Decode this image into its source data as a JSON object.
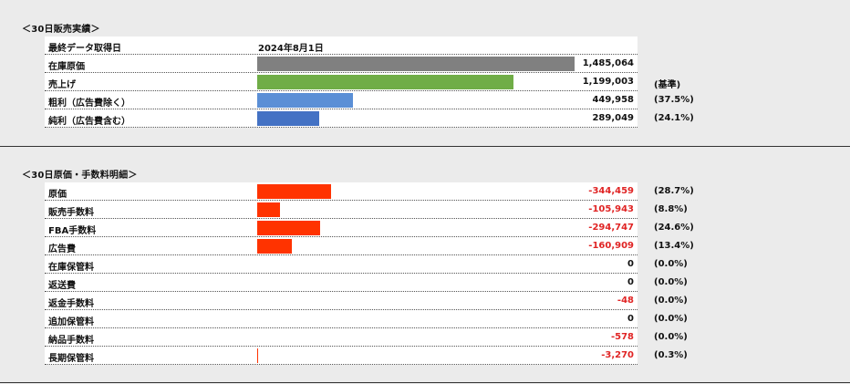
{
  "sales": {
    "title": "＜30日販売実績＞",
    "last_fetch_label": "最終データ取得日",
    "last_fetch_date": "2024年8月1日",
    "rows": [
      {
        "label": "在庫原価",
        "value": "1,485,064",
        "note": "",
        "bar_fraction": 1.0,
        "bar_color": "#808080"
      },
      {
        "label": "売上げ",
        "value": "1,199,003",
        "note": "(基準)",
        "bar_fraction": 0.807,
        "bar_color": "#70ad47"
      },
      {
        "label": "粗利（広告費除く）",
        "value": "449,958",
        "note": "(37.5%)",
        "bar_fraction": 0.303,
        "bar_color": "#5b8fd6"
      },
      {
        "label": "純利（広告費含む）",
        "value": "289,049",
        "note": "(24.1%)",
        "bar_fraction": 0.195,
        "bar_color": "#4472c4"
      }
    ]
  },
  "costs": {
    "title": "＜30日原価・手数料明細＞",
    "rows": [
      {
        "label": "原価",
        "value": "-344,459",
        "note": "(28.7%)",
        "bar_fraction": 0.232,
        "bar_color": "#ff3300",
        "negative": true
      },
      {
        "label": "販売手数料",
        "value": "-105,943",
        "note": "(8.8%)",
        "bar_fraction": 0.071,
        "bar_color": "#ff3300",
        "negative": true
      },
      {
        "label": "FBA手数料",
        "value": "-294,747",
        "note": "(24.6%)",
        "bar_fraction": 0.198,
        "bar_color": "#ff3300",
        "negative": true
      },
      {
        "label": "広告費",
        "value": "-160,909",
        "note": "(13.4%)",
        "bar_fraction": 0.108,
        "bar_color": "#ff3300",
        "negative": true
      },
      {
        "label": "在庫保管料",
        "value": "0",
        "note": "(0.0%)",
        "bar_fraction": 0,
        "bar_color": "#ff3300",
        "negative": false
      },
      {
        "label": "返送費",
        "value": "0",
        "note": "(0.0%)",
        "bar_fraction": 0,
        "bar_color": "#ff3300",
        "negative": false
      },
      {
        "label": "返金手数料",
        "value": "-48",
        "note": "(0.0%)",
        "bar_fraction": 0,
        "bar_color": "#ff3300",
        "negative": true
      },
      {
        "label": "追加保管料",
        "value": "0",
        "note": "(0.0%)",
        "bar_fraction": 0,
        "bar_color": "#ff3300",
        "negative": false
      },
      {
        "label": "納品手数料",
        "value": "-578",
        "note": "(0.0%)",
        "bar_fraction": 0,
        "bar_color": "#ff3300",
        "negative": true
      },
      {
        "label": "長期保管料",
        "value": "-3,270",
        "note": "(0.3%)",
        "bar_fraction": 0.002,
        "bar_color": "#ff3300",
        "negative": true
      }
    ]
  }
}
